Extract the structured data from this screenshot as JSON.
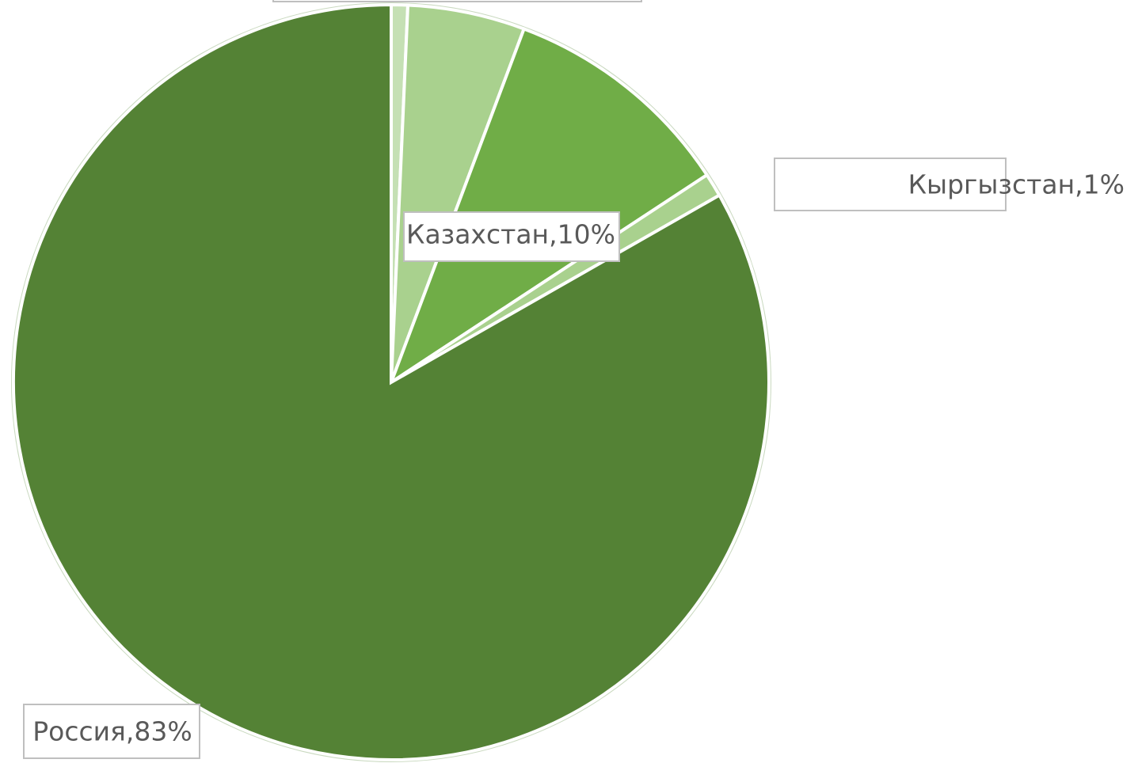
{
  "chart_data": {
    "type": "pie",
    "values": [
      0.7,
      5,
      10,
      1,
      83
    ],
    "value_labels": [
      null,
      null,
      "Казахстан,10%",
      "Кыргызстан,1%",
      "Россия,83%"
    ],
    "colors": [
      "#c5e0b4",
      "#a9d18e",
      "#70ad47",
      "#a9d18e",
      "#548235"
    ]
  }
}
